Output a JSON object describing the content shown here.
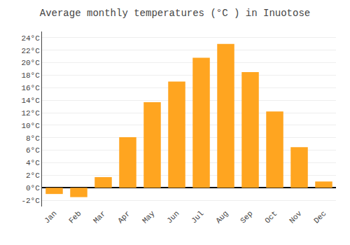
{
  "chart_data": {
    "type": "bar",
    "title": "Average monthly temperatures (°C ) in Inuotose",
    "categories": [
      "Jan",
      "Feb",
      "Mar",
      "Apr",
      "May",
      "Jun",
      "Jul",
      "Aug",
      "Sep",
      "Oct",
      "Nov",
      "Dec"
    ],
    "values": [
      -1.0,
      -1.5,
      1.7,
      8.1,
      13.7,
      17.0,
      20.8,
      23.0,
      18.5,
      12.2,
      6.5,
      1.0
    ],
    "color": "#FFA520",
    "ylim": [
      -3,
      25
    ],
    "yticks": [
      {
        "value": -2,
        "label": "-2°C"
      },
      {
        "value": 0,
        "label": "0°C"
      },
      {
        "value": 2,
        "label": "2°C"
      },
      {
        "value": 4,
        "label": "4°C"
      },
      {
        "value": 6,
        "label": "6°C"
      },
      {
        "value": 8,
        "label": "8°C"
      },
      {
        "value": 10,
        "label": "10°C"
      },
      {
        "value": 12,
        "label": "12°C"
      },
      {
        "value": 14,
        "label": "14°C"
      },
      {
        "value": 16,
        "label": "16°C"
      },
      {
        "value": 18,
        "label": "18°C"
      },
      {
        "value": 20,
        "label": "20°C"
      },
      {
        "value": 22,
        "label": "22°C"
      },
      {
        "value": 24,
        "label": "24°C"
      }
    ],
    "grid": true
  }
}
